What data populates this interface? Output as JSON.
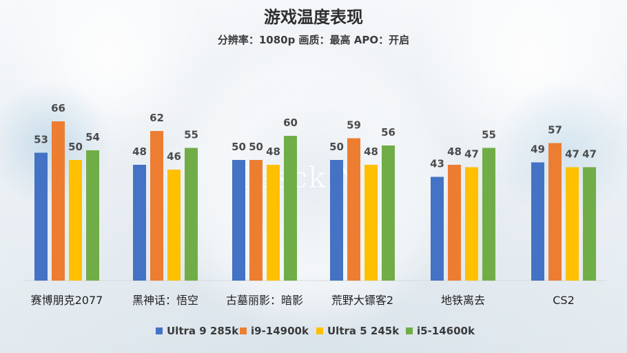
{
  "chart_data": {
    "type": "bar",
    "title": "游戏温度表现",
    "subtitle": "分辨率：1080p 画质：最高 APO：开启",
    "categories": [
      "赛博朋克2077",
      "黑神话：悟空",
      "古墓丽影：暗影",
      "荒野大镖客2",
      "地铁离去",
      "CS2"
    ],
    "series": [
      {
        "name": "Ultra 9 285k",
        "color": "#4472C4",
        "values": [
          53,
          48,
          50,
          50,
          43,
          49
        ]
      },
      {
        "name": "i9-14900k",
        "color": "#ED7D31",
        "values": [
          66,
          62,
          50,
          59,
          48,
          57
        ]
      },
      {
        "name": "Ultra 5 245k",
        "color": "#FFC000",
        "values": [
          50,
          46,
          48,
          48,
          47,
          47
        ]
      },
      {
        "name": "i5-14600k",
        "color": "#70AD47",
        "values": [
          54,
          55,
          60,
          56,
          55,
          47
        ]
      }
    ],
    "ylim": [
      0,
      70
    ],
    "legend_position": "bottom",
    "grid": false,
    "background_text": "Easck.Net"
  }
}
